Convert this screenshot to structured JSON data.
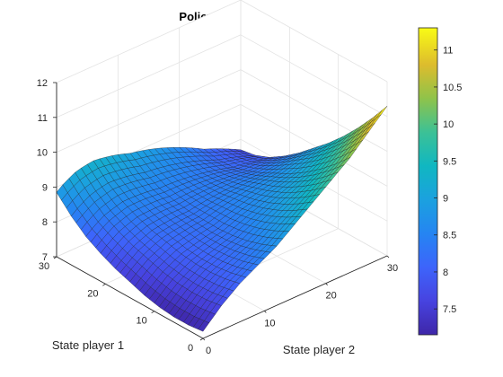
{
  "chart_data": {
    "type": "surface3d",
    "title": "Policy function",
    "xlabel": "State player 2",
    "ylabel": "State player 1",
    "zlabel": "",
    "xlim": [
      0,
      30
    ],
    "ylim": [
      0,
      30
    ],
    "zlim": [
      7,
      12
    ],
    "xticks": [
      "0",
      "10",
      "20",
      "30"
    ],
    "yticks": [
      "0",
      "10",
      "20",
      "30"
    ],
    "zticks": [
      "7",
      "8",
      "9",
      "10",
      "11",
      "12"
    ],
    "colorbar": {
      "range": [
        7.15,
        11.3
      ],
      "ticks": [
        "7.5",
        "8",
        "8.5",
        "9",
        "9.5",
        "10",
        "10.5",
        "11"
      ],
      "colormap": "parula"
    },
    "surface": {
      "x": [
        0,
        3,
        6,
        9,
        12,
        15,
        18,
        21,
        24,
        27,
        30
      ],
      "y": [
        0,
        3,
        6,
        9,
        12,
        15,
        18,
        21,
        24,
        27,
        30
      ],
      "z_along_x_at_y0": [
        7.2,
        7.7,
        8.1,
        8.4,
        8.7,
        9.1,
        9.5,
        9.9,
        10.3,
        10.8,
        11.3
      ],
      "z_along_y_at_x0": [
        7.2,
        7.15,
        7.15,
        7.2,
        7.3,
        7.45,
        7.6,
        7.8,
        8.05,
        8.4,
        8.85
      ],
      "z_corner_x30_y30": 7.7
    },
    "grid": true
  }
}
